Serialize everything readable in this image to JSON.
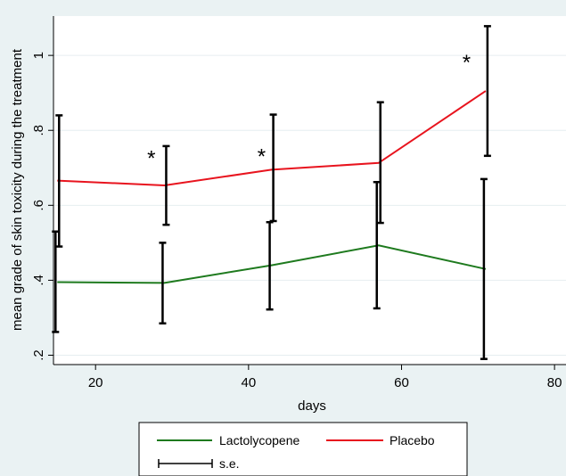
{
  "chart_data": {
    "type": "line",
    "xlabel": "days",
    "ylabel": "mean grade of skin toxicity during the treatment",
    "xlim": [
      14.5,
      81.5
    ],
    "ylim": [
      0.175,
      1.105
    ],
    "x_ticks": [
      20,
      40,
      60,
      80
    ],
    "y_ticks": [
      0.2,
      0.4,
      0.6,
      0.8,
      1.0
    ],
    "y_tick_labels": [
      ".2",
      ".4",
      ".6",
      ".8",
      "1"
    ],
    "grid": "horizontal",
    "series": [
      {
        "name": "Lactolycopene",
        "color": "#1e7a1e",
        "x": [
          15,
          29,
          43,
          57,
          71
        ],
        "y": [
          0.395,
          0.393,
          0.44,
          0.493,
          0.43
        ],
        "err_low": [
          0.262,
          0.285,
          0.322,
          0.325,
          0.19
        ],
        "err_high": [
          0.53,
          0.5,
          0.555,
          0.662,
          0.67
        ]
      },
      {
        "name": "Placebo",
        "color": "#e8141e",
        "x": [
          15,
          29,
          43,
          57,
          71
        ],
        "y": [
          0.666,
          0.653,
          0.695,
          0.713,
          0.905
        ],
        "err_low": [
          0.49,
          0.548,
          0.558,
          0.553,
          0.732
        ],
        "err_high": [
          0.84,
          0.758,
          0.842,
          0.875,
          1.078
        ]
      }
    ],
    "annotations": [
      {
        "text": "*",
        "x": 27.3,
        "y": 0.74
      },
      {
        "text": "*",
        "x": 41.7,
        "y": 0.745
      },
      {
        "text": "*",
        "x": 68.5,
        "y": 0.995
      }
    ],
    "legend": {
      "position": "bottom",
      "entries": [
        "Lactolycopene",
        "Placebo",
        "s.e."
      ]
    }
  }
}
